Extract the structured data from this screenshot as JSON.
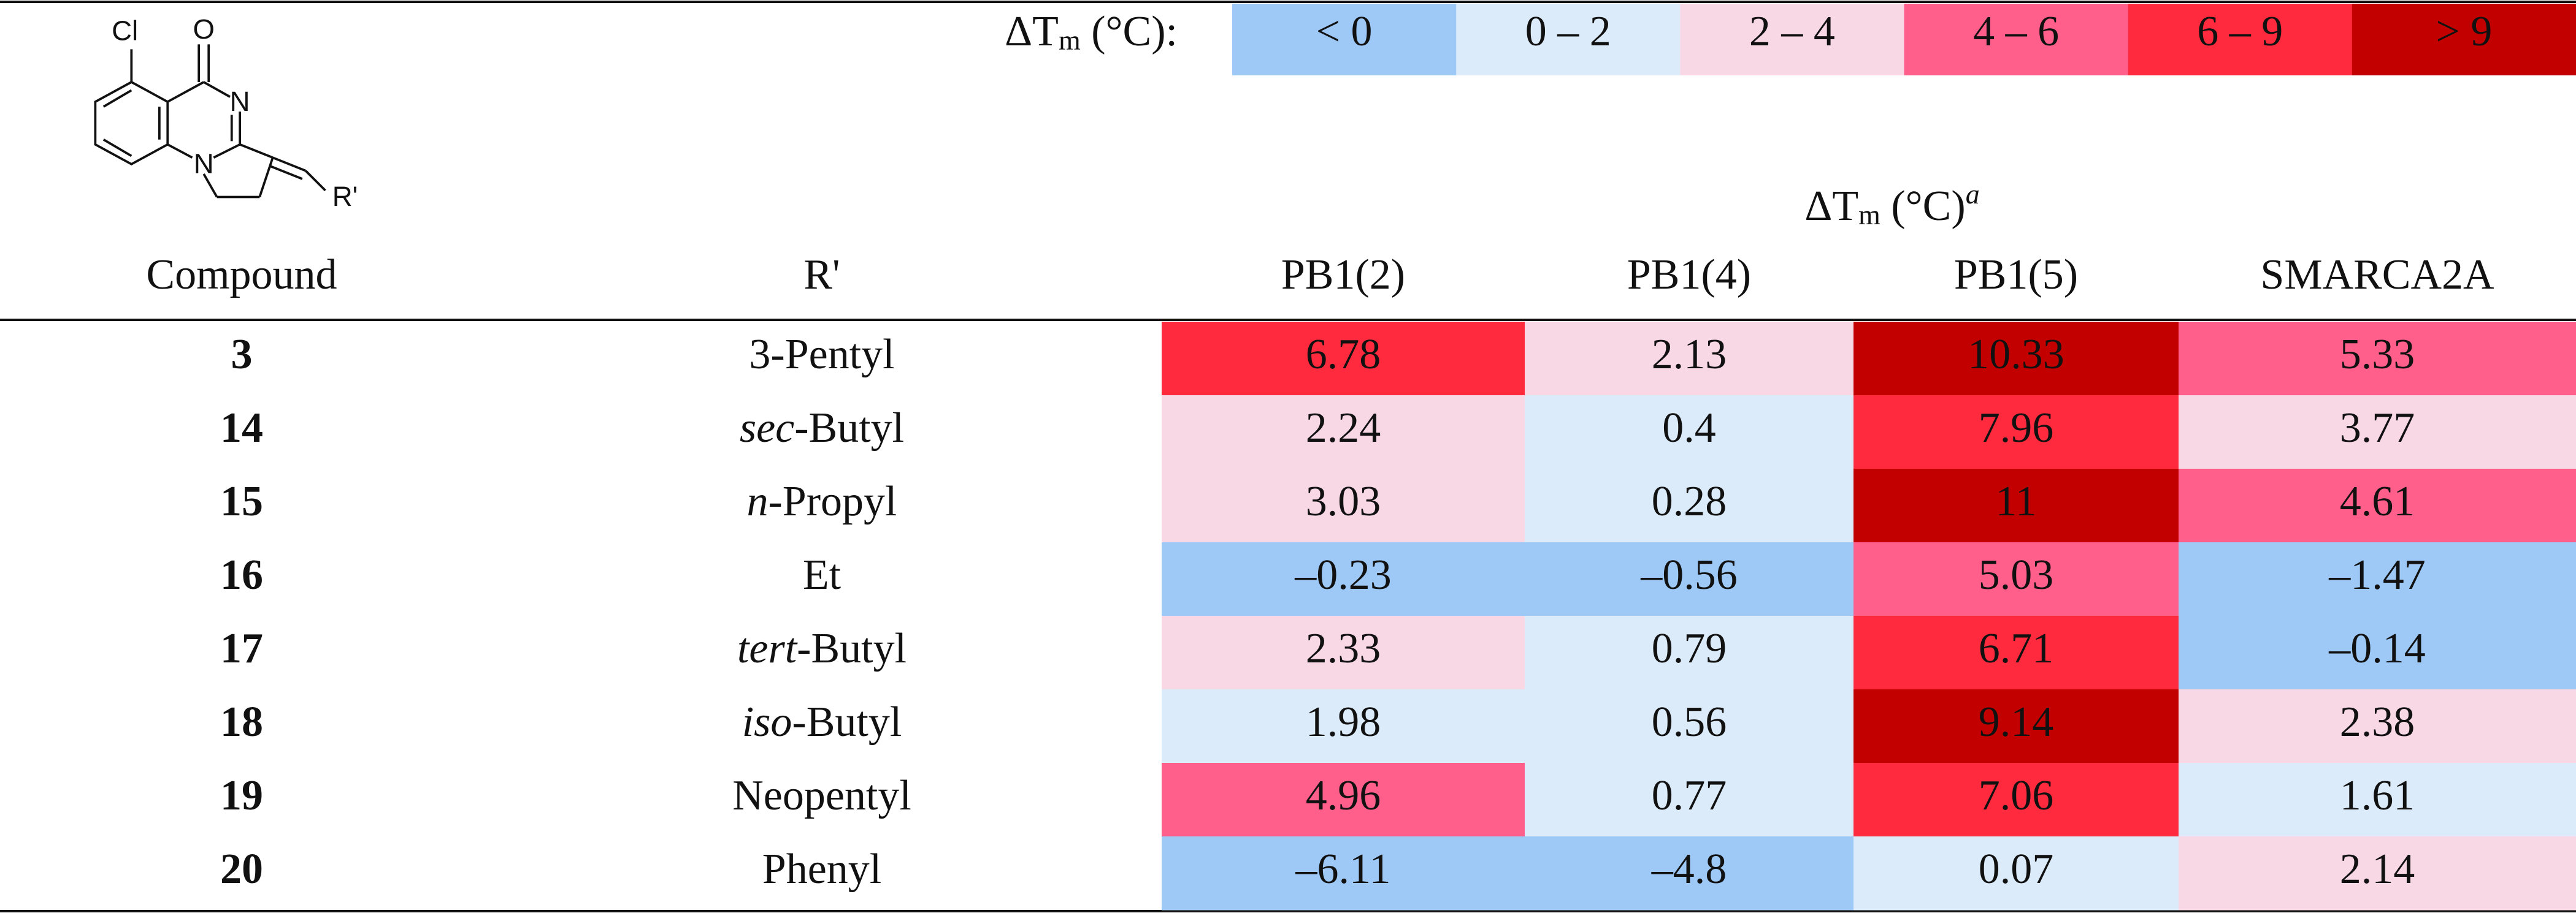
{
  "structure": {
    "labels": [
      "Cl",
      "O",
      "N",
      "N",
      "R'"
    ]
  },
  "legend": {
    "label": {
      "main": "ΔT",
      "sub": "m",
      "rest": " (°C):"
    },
    "bins": [
      {
        "label": "< 0",
        "color": "#9ec8f5",
        "text_color": "#111111"
      },
      {
        "label": "0 – 2",
        "color": "#dcebf9",
        "text_color": "#111111"
      },
      {
        "label": "2 – 4",
        "color": "#f9d8e6",
        "text_color": "#111111"
      },
      {
        "label": "4 – 6",
        "color": "#ff5f8a",
        "text_color": "#111111"
      },
      {
        "label": "6 – 9",
        "color": "#ff2a3d",
        "text_color": "#111111"
      },
      {
        "label": "> 9",
        "color": "#c30000",
        "text_color": "#ffffff"
      }
    ]
  },
  "table": {
    "group_header": {
      "main": "ΔT",
      "sub": "m",
      "rest": " (°C)",
      "sup": "a"
    },
    "columns": [
      "Compound",
      "R'",
      "PB1(2)",
      "PB1(4)",
      "PB1(5)",
      "SMARCA2A"
    ],
    "rows": [
      {
        "compound": "3",
        "r": "3-Pentyl",
        "cells": [
          {
            "text": "6.78",
            "color": "#ff2a3d"
          },
          {
            "text": "2.13",
            "color": "#f9d8e6"
          },
          {
            "text": "10.33",
            "color": "#c30000"
          },
          {
            "text": "5.33",
            "color": "#ff5f8a"
          }
        ]
      },
      {
        "compound": "14",
        "r_prefix": "sec",
        "r": "-Butyl",
        "cells": [
          {
            "text": "2.24",
            "color": "#f9d8e6"
          },
          {
            "text": "0.4",
            "color": "#dcebf9"
          },
          {
            "text": "7.96",
            "color": "#ff2a3d"
          },
          {
            "text": "3.77",
            "color": "#f9d8e6"
          }
        ]
      },
      {
        "compound": "15",
        "r_prefix": "n",
        "r": "-Propyl",
        "cells": [
          {
            "text": "3.03",
            "color": "#f9d8e6"
          },
          {
            "text": "0.28",
            "color": "#dcebf9"
          },
          {
            "text": "11",
            "color": "#c30000"
          },
          {
            "text": "4.61",
            "color": "#ff5f8a"
          }
        ]
      },
      {
        "compound": "16",
        "r": "Et",
        "cells": [
          {
            "text": "–0.23",
            "color": "#9ec8f5"
          },
          {
            "text": "–0.56",
            "color": "#9ec8f5"
          },
          {
            "text": "5.03",
            "color": "#ff5f8a"
          },
          {
            "text": "–1.47",
            "color": "#9ec8f5"
          }
        ]
      },
      {
        "compound": "17",
        "r_prefix": "tert",
        "r": "-Butyl",
        "cells": [
          {
            "text": "2.33",
            "color": "#f9d8e6"
          },
          {
            "text": "0.79",
            "color": "#dcebf9"
          },
          {
            "text": "6.71",
            "color": "#ff2a3d"
          },
          {
            "text": "–0.14",
            "color": "#9ec8f5"
          }
        ]
      },
      {
        "compound": "18",
        "r_prefix": "iso",
        "r": "-Butyl",
        "cells": [
          {
            "text": "1.98",
            "color": "#dcebf9"
          },
          {
            "text": "0.56",
            "color": "#dcebf9"
          },
          {
            "text": "9.14",
            "color": "#c30000"
          },
          {
            "text": "2.38",
            "color": "#f9d8e6"
          }
        ]
      },
      {
        "compound": "19",
        "r": "Neopentyl",
        "cells": [
          {
            "text": "4.96",
            "color": "#ff5f8a"
          },
          {
            "text": "0.77",
            "color": "#dcebf9"
          },
          {
            "text": "7.06",
            "color": "#ff2a3d"
          },
          {
            "text": "1.61",
            "color": "#dcebf9"
          }
        ]
      },
      {
        "compound": "20",
        "r": "Phenyl",
        "cells": [
          {
            "text": "–6.11",
            "color": "#9ec8f5"
          },
          {
            "text": "–4.8",
            "color": "#9ec8f5"
          },
          {
            "text": "0.07",
            "color": "#dcebf9"
          },
          {
            "text": "2.14",
            "color": "#f9d8e6"
          }
        ]
      }
    ]
  }
}
